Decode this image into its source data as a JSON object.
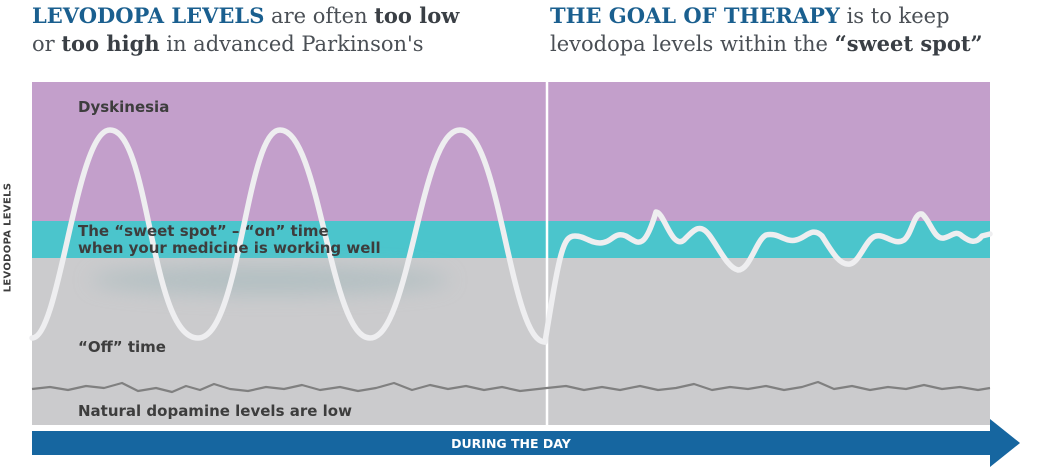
{
  "headings": {
    "left": {
      "line1_bold": "LEVODOPA LEVELS",
      "line1_mid": " are often ",
      "line1_bold2": "too low",
      "line2_pre": "or ",
      "line2_bold": "too high",
      "line2_post": " in advanced Parkinson's"
    },
    "right": {
      "line1_bold": "THE GOAL OF THERAPY",
      "line1_post": " is to keep",
      "line2_pre": "levodopa levels within the ",
      "line2_bold": "“sweet spot”"
    }
  },
  "zones": {
    "dyskinesia": "Dyskinesia",
    "sweet_spot_line1": "The “sweet spot” – “on” time",
    "sweet_spot_line2": "when your medicine is working well",
    "off_time": "“Off” time",
    "natural_dopamine": "Natural dopamine levels are low"
  },
  "axis": {
    "y_label": "LEVODOPA LEVELS",
    "x_label": "DURING THE DAY"
  },
  "colors": {
    "dyskinesia": "#c39fcb",
    "sweet_spot": "#4bc5cc",
    "off_time": "#cbcbcd",
    "arrow": "#1666a0",
    "curve": "#eeeef0",
    "dopamine_line": "#808080",
    "heading_accent": "#1a5f8f"
  }
}
